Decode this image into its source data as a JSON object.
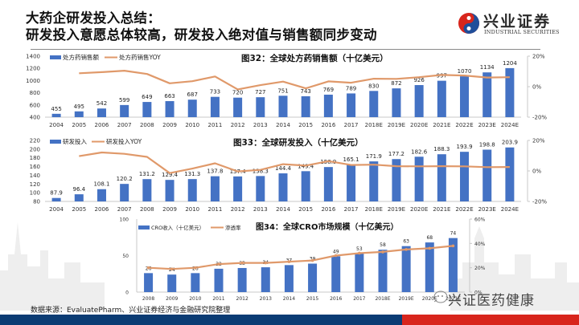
{
  "header": {
    "title_line1": "大药企研发投入总结：",
    "title_line2": "研发投入意愿总体较高，研发投入绝对值与销售额同步变动",
    "logo_cn": "兴业证券",
    "logo_en": "INDUSTRIAL SECURITIES"
  },
  "colors": {
    "bar": "#4472c4",
    "line": "#e0996a",
    "footer_blue": "#0b3c74",
    "footer_red": "#d8251c",
    "logo_red": "#d8251c",
    "logo_blue": "#1f4e9a"
  },
  "footer": {
    "source": "数据来源：EvaluatePharm、兴业证券经济与金融研究院整理",
    "watermark": "兴证医药健康"
  },
  "chart_data": [
    {
      "type": "bar",
      "title": "图32：全球处方药销售额（十亿美元）",
      "legend": [
        "处方药销售额",
        "处方药销售YOY"
      ],
      "legend_position": "top-left",
      "categories": [
        "2004",
        "2005",
        "2006",
        "2007",
        "2008",
        "2009",
        "2010",
        "2011",
        "2012",
        "2013",
        "2014",
        "2015",
        "2016",
        "2017",
        "2018E",
        "2019E",
        "2020E",
        "2021E",
        "2022E",
        "2023E",
        "2024E"
      ],
      "series": [
        {
          "name": "处方药销售额",
          "type": "bar",
          "axis": "left",
          "values": [
            455,
            495,
            542,
            599,
            649,
            663,
            687,
            733,
            720,
            727,
            751,
            743,
            769,
            789,
            830,
            872,
            926,
            997,
            1070,
            1134,
            1204
          ]
        },
        {
          "name": "处方药销售YOY",
          "type": "line",
          "axis": "right",
          "values": [
            null,
            8.8,
            9.5,
            10.5,
            8.3,
            2.2,
            3.6,
            6.7,
            -1.8,
            1.0,
            3.3,
            -1.1,
            3.5,
            2.6,
            5.2,
            5.1,
            6.2,
            7.7,
            7.3,
            6.0,
            6.2
          ]
        }
      ],
      "ylim": [
        400,
        1400
      ],
      "yticks": [
        "1400",
        "1200",
        "1000",
        "800",
        "600",
        "400"
      ],
      "y2lim": [
        -20,
        20
      ],
      "y2ticks": [
        "20%",
        "0%",
        "-20%"
      ],
      "xlabel": "",
      "ylabel": "",
      "grid": false
    },
    {
      "type": "bar",
      "title": "图33：全球研发投入（十亿美元）",
      "legend": [
        "研发投入",
        "研发投入YOY"
      ],
      "legend_position": "top-left",
      "categories": [
        "2004",
        "2005",
        "2006",
        "2007",
        "2008",
        "2009",
        "2010",
        "2011",
        "2012",
        "2013",
        "2014",
        "2015",
        "2016",
        "2017",
        "2018E",
        "2019E",
        "2020E",
        "2021E",
        "2022E",
        "2023E",
        "2024E"
      ],
      "series": [
        {
          "name": "研发投入",
          "type": "bar",
          "axis": "left",
          "values": [
            87.9,
            96.4,
            108.1,
            120.2,
            131.2,
            129.4,
            131.3,
            137.8,
            137.4,
            138.3,
            144.4,
            149.4,
            158.9,
            165.1,
            171.9,
            177.2,
            182.6,
            188.3,
            193.9,
            198.8,
            203.9
          ]
        },
        {
          "name": "研发投入YOY",
          "type": "line",
          "axis": "right",
          "values": [
            null,
            9.7,
            12.1,
            11.2,
            9.2,
            -1.4,
            1.5,
            5.0,
            -0.3,
            0.7,
            4.4,
            3.5,
            6.4,
            3.9,
            4.1,
            3.1,
            3.0,
            3.1,
            3.0,
            2.5,
            2.6
          ]
        }
      ],
      "ylim": [
        80,
        220
      ],
      "yticks": [
        "220",
        "200",
        "180",
        "160",
        "140",
        "120",
        "100",
        "80"
      ],
      "y2lim": [
        -20,
        20
      ],
      "y2ticks": [
        "20%",
        "0%",
        "-20%"
      ],
      "xlabel": "",
      "ylabel": "",
      "grid": false
    },
    {
      "type": "bar",
      "title": "图34：全球CRO市场规模（十亿美元）",
      "legend": [
        "CRO收入（十亿美元）",
        "渗透率"
      ],
      "legend_position": "top-left",
      "categories": [
        "2008",
        "2009",
        "2010",
        "2011",
        "2012",
        "2013",
        "2014",
        "2015",
        "2016",
        "2017",
        "2018E",
        "2019E",
        "2020E",
        "2021E"
      ],
      "series": [
        {
          "name": "CRO收入（十亿美元）",
          "type": "bar",
          "axis": "left",
          "values": [
            26,
            24,
            26,
            32,
            33,
            34,
            37,
            39,
            49,
            53,
            58,
            63,
            68,
            74
          ]
        },
        {
          "name": "渗透率",
          "type": "line",
          "axis": "right",
          "values": [
            20,
            19,
            20,
            23,
            24,
            24,
            25,
            26,
            30,
            32,
            33,
            35,
            36,
            38
          ]
        }
      ],
      "ylim": [
        0,
        100
      ],
      "yticks": [
        "100",
        "50",
        "0"
      ],
      "y2lim": [
        0,
        60
      ],
      "y2ticks": [
        "60%",
        "40%",
        "20%",
        "0%"
      ],
      "xlabel": "",
      "ylabel": "",
      "grid": false
    }
  ]
}
